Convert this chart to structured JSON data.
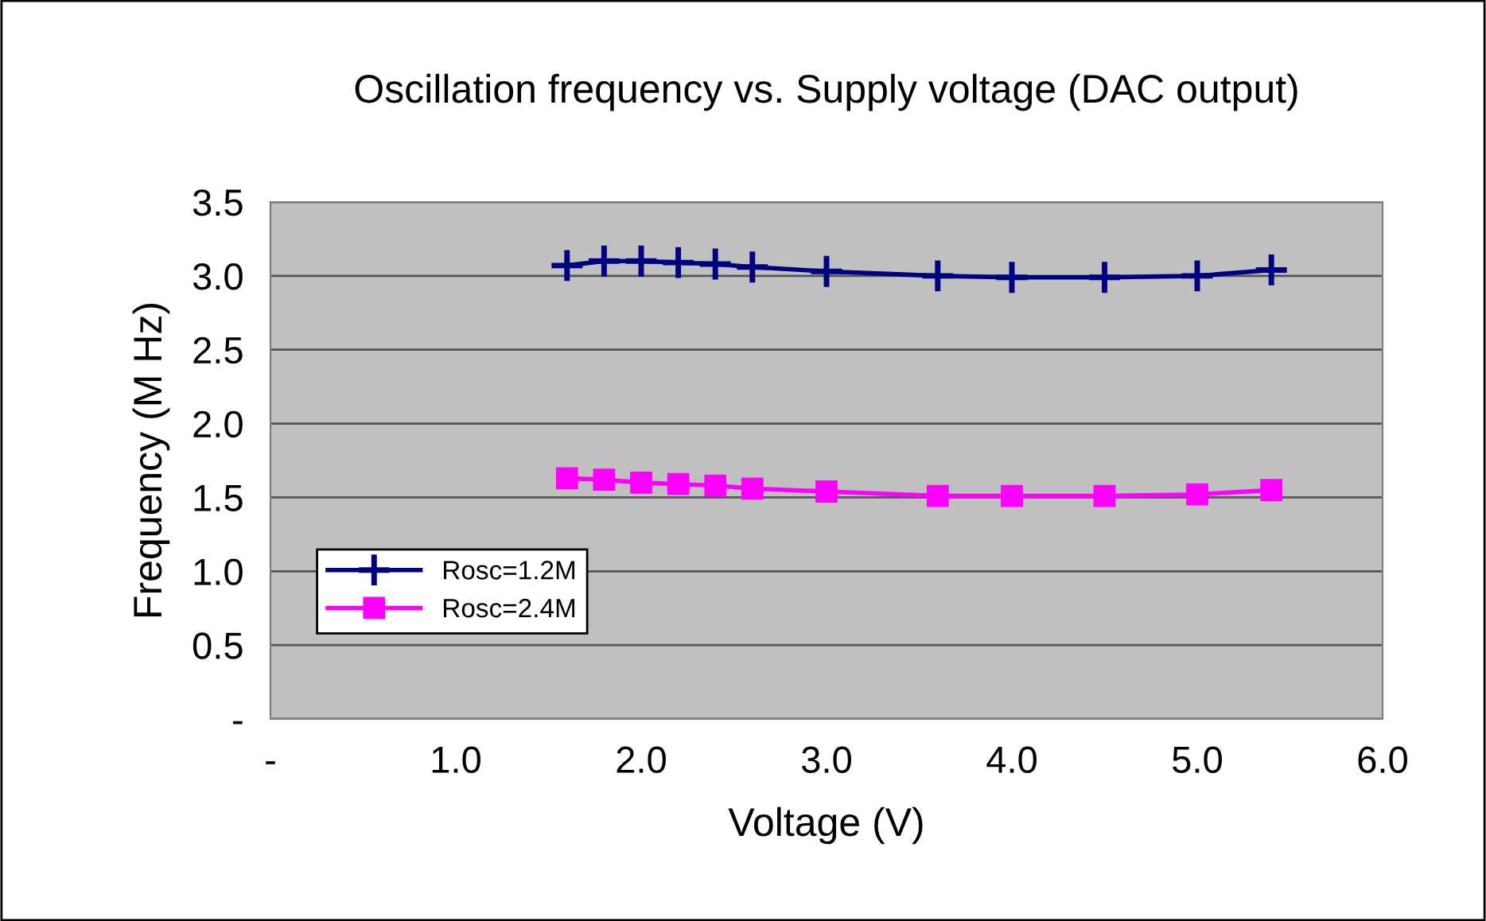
{
  "chart_data": {
    "type": "line",
    "title": "Oscillation frequency vs. Supply voltage (DAC output)",
    "xlabel": "Voltage (V)",
    "ylabel": "Frequency (M Hz)",
    "x": [
      1.6,
      1.8,
      2.0,
      2.2,
      2.4,
      2.6,
      3.0,
      3.6,
      4.0,
      4.5,
      5.0,
      5.4
    ],
    "series": [
      {
        "name": "Rosc=1.2M",
        "color": "#000080",
        "marker": "cross",
        "values": [
          3.07,
          3.1,
          3.1,
          3.09,
          3.08,
          3.06,
          3.03,
          3.0,
          2.99,
          2.99,
          3.0,
          3.04
        ]
      },
      {
        "name": "Rosc=2.4M",
        "color": "#ff00ff",
        "marker": "square",
        "values": [
          1.63,
          1.62,
          1.6,
          1.59,
          1.58,
          1.56,
          1.54,
          1.51,
          1.51,
          1.51,
          1.52,
          1.55
        ]
      }
    ],
    "xlim": [
      0,
      6
    ],
    "xticks": [
      {
        "value": 0,
        "label": "-"
      },
      {
        "value": 1,
        "label": "1.0"
      },
      {
        "value": 2,
        "label": "2.0"
      },
      {
        "value": 3,
        "label": "3.0"
      },
      {
        "value": 4,
        "label": "4.0"
      },
      {
        "value": 5,
        "label": "5.0"
      },
      {
        "value": 6,
        "label": "6.0"
      }
    ],
    "ylim": [
      0,
      3.5
    ],
    "yticks": [
      {
        "value": 0,
        "label": "-"
      },
      {
        "value": 0.5,
        "label": "0.5"
      },
      {
        "value": 1,
        "label": "1.0"
      },
      {
        "value": 1.5,
        "label": "1.5"
      },
      {
        "value": 2,
        "label": "2.0"
      },
      {
        "value": 2.5,
        "label": "2.5"
      },
      {
        "value": 3,
        "label": "3.0"
      },
      {
        "value": 3.5,
        "label": "3.5"
      }
    ],
    "grid": "y",
    "legend": "bottom left",
    "line_style": "solid"
  }
}
